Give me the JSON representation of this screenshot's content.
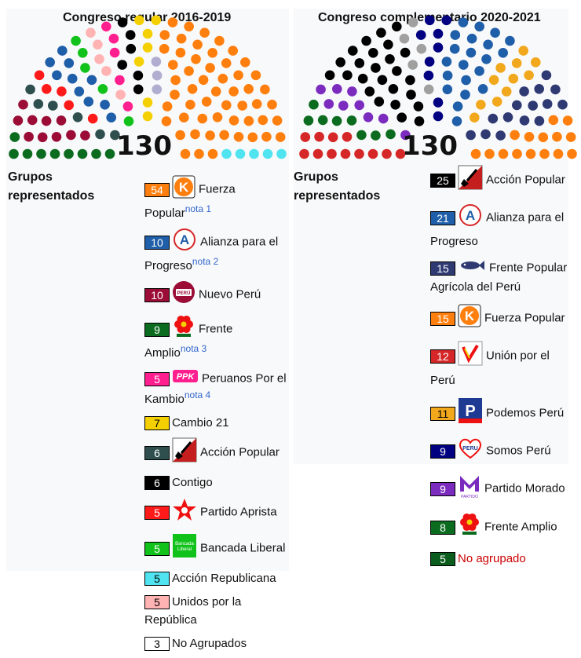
{
  "chart_data": [
    {
      "type": "parliament",
      "title": "Congreso regular 2016-2019",
      "total": "130",
      "groups_heading": "Grupos representados",
      "series": [
        {
          "name": "Fuerza Popular",
          "values": [
            54
          ],
          "color": "#ff7f0e",
          "note": "nota 1",
          "logo": "k-logo-icon"
        },
        {
          "name": "Alianza para el Progreso",
          "values": [
            10
          ],
          "color": "#1f5ea8",
          "note": "nota 2",
          "logo": "app-a-logo-icon"
        },
        {
          "name": "Nuevo Perú",
          "values": [
            10
          ],
          "color": "#9b0d36",
          "note": "",
          "logo": "nuevo-peru-logo-icon"
        },
        {
          "name": "Frente Amplio",
          "values": [
            9
          ],
          "color": "#0b6b1e",
          "note": "nota 3",
          "logo": "flower-logo-icon"
        },
        {
          "name": "Peruanos Por el Kambio",
          "values": [
            5
          ],
          "color": "#ff1f8f",
          "note": "nota 4",
          "logo": "ppk-logo-icon"
        },
        {
          "name": "Cambio 21",
          "values": [
            7
          ],
          "color": "#f5d000",
          "note": "",
          "logo": ""
        },
        {
          "name": "Acción Popular",
          "values": [
            6
          ],
          "color": "#2f4f4f",
          "note": "",
          "logo": "shovel-logo-icon"
        },
        {
          "name": "Contigo",
          "values": [
            6
          ],
          "color": "#000000",
          "note": "",
          "logo": ""
        },
        {
          "name": "Partido Aprista",
          "values": [
            5
          ],
          "color": "#ff1a1a",
          "note": "",
          "logo": "apra-star-logo-icon"
        },
        {
          "name": "Bancada Liberal",
          "values": [
            5
          ],
          "color": "#11c21a",
          "note": "",
          "logo": "bancada-liberal-logo-icon"
        },
        {
          "name": "Acción Republicana",
          "values": [
            5
          ],
          "color": "#50e3f0",
          "note": "",
          "logo": ""
        },
        {
          "name": "Unidos por la República",
          "values": [
            5
          ],
          "color": "#ffb3b3",
          "note": "",
          "logo": ""
        },
        {
          "name": "No Agrupados",
          "values": [
            3
          ],
          "color": "#ffffff",
          "note": "",
          "logo": ""
        }
      ],
      "seat_order": [
        {
          "name": "Frente Amplio",
          "count": 9,
          "color": "#0b6b1e"
        },
        {
          "name": "Nuevo Perú",
          "count": 10,
          "color": "#9b0d36"
        },
        {
          "name": "Acción Popular",
          "count": 6,
          "color": "#2f4f4f"
        },
        {
          "name": "Partido Aprista",
          "count": 5,
          "color": "#ff1a1a"
        },
        {
          "name": "Alianza para el Progreso",
          "count": 10,
          "color": "#1f5ea8"
        },
        {
          "name": "Bancada Liberal",
          "count": 5,
          "color": "#11c21a"
        },
        {
          "name": "Unidos por la República",
          "count": 5,
          "color": "#ffb3b3"
        },
        {
          "name": "Peruanos Por el Kambio",
          "count": 5,
          "color": "#ff1f8f"
        },
        {
          "name": "Contigo",
          "count": 6,
          "color": "#000000"
        },
        {
          "name": "Cambio 21",
          "count": 7,
          "color": "#f5d000"
        },
        {
          "name": "No Agrupados",
          "count": 3,
          "color": "#b0aed0"
        },
        {
          "name": "Fuerza Popular",
          "count": 54,
          "color": "#ff7f0e"
        },
        {
          "name": "Acción Republicana",
          "count": 5,
          "color": "#50e3f0"
        }
      ]
    },
    {
      "type": "parliament",
      "title": "Congreso complementario 2020-2021",
      "total": "130",
      "groups_heading": "Grupos representados",
      "series": [
        {
          "name": "Acción Popular",
          "values": [
            25
          ],
          "color": "#000000",
          "note": "",
          "logo": "shovel-logo-icon"
        },
        {
          "name": "Alianza para el Progreso",
          "values": [
            21
          ],
          "color": "#1f5ea8",
          "note": "",
          "logo": "app-a-logo-icon"
        },
        {
          "name": "Frente Popular Agrícola del Perú",
          "values": [
            15
          ],
          "color": "#2f3a73",
          "note": "",
          "logo": "fish-logo-icon"
        },
        {
          "name": "Fuerza Popular",
          "values": [
            15
          ],
          "color": "#ff7f0e",
          "note": "",
          "logo": "k-logo-icon"
        },
        {
          "name": "Unión por el Perú",
          "values": [
            12
          ],
          "color": "#d62728",
          "note": "",
          "logo": "upp-logo-icon"
        },
        {
          "name": "Podemos Perú",
          "values": [
            11
          ],
          "color": "#f2a81d",
          "note": "",
          "logo": "podemos-logo-icon"
        },
        {
          "name": "Somos Perú",
          "values": [
            9
          ],
          "color": "#000080",
          "note": "",
          "logo": "somos-peru-logo-icon"
        },
        {
          "name": "Partido Morado",
          "values": [
            9
          ],
          "color": "#7b2cbf",
          "note": "",
          "logo": "morado-logo-icon"
        },
        {
          "name": "Frente Amplio",
          "values": [
            8
          ],
          "color": "#0b6b1e",
          "note": "",
          "logo": "flower-logo-icon"
        },
        {
          "name": "No agrupado",
          "values": [
            5
          ],
          "color": "#0b5d1e",
          "note": "",
          "logo": ""
        }
      ],
      "seat_order": [
        {
          "name": "Unión por el Perú",
          "count": 12,
          "color": "#d62728"
        },
        {
          "name": "Frente Amplio",
          "count": 8,
          "color": "#0b6b1e"
        },
        {
          "name": "Partido Morado",
          "count": 9,
          "color": "#7b2cbf"
        },
        {
          "name": "Acción Popular",
          "count": 25,
          "color": "#000000"
        },
        {
          "name": "No agrupado",
          "count": 5,
          "color": "#a0a0a0"
        },
        {
          "name": "Somos Perú",
          "count": 9,
          "color": "#000080"
        },
        {
          "name": "Alianza para el Progreso",
          "count": 21,
          "color": "#1f5ea8"
        },
        {
          "name": "Podemos Perú",
          "count": 11,
          "color": "#f2a81d"
        },
        {
          "name": "Frente Popular Agrícola del Perú",
          "count": 15,
          "color": "#2f3a73"
        },
        {
          "name": "Fuerza Popular",
          "count": 15,
          "color": "#ff7f0e"
        }
      ]
    }
  ]
}
